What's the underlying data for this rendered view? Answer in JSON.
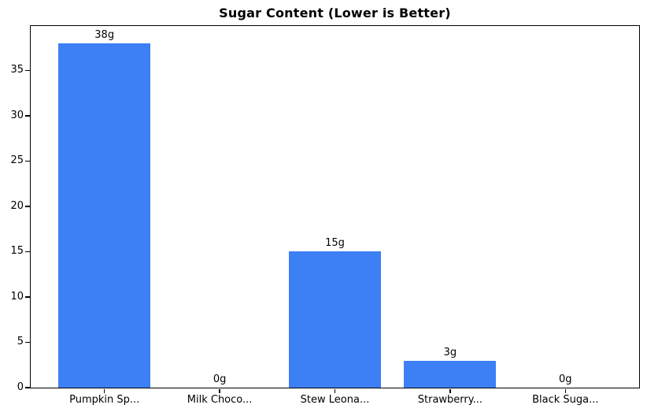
{
  "chart_data": {
    "type": "bar",
    "title": "Sugar Content (Lower is Better)",
    "categories": [
      "Pumpkin Sp...",
      "Milk Choco...",
      "Stew Leona...",
      "Strawberry...",
      "Black Suga..."
    ],
    "values": [
      38,
      0,
      15,
      3,
      0
    ],
    "value_labels": [
      "38g",
      "0g",
      "15g",
      "3g",
      "0g"
    ],
    "xlabel": "",
    "ylabel": "",
    "ylim": [
      0,
      39.9
    ],
    "yticks": [
      0,
      5,
      10,
      15,
      20,
      25,
      30,
      35
    ],
    "bar_width_fraction": 0.8,
    "bar_color": "#3D7FF5",
    "spine_color": "#000000",
    "background_color": "#ffffff",
    "grid": false,
    "legend": null
  }
}
